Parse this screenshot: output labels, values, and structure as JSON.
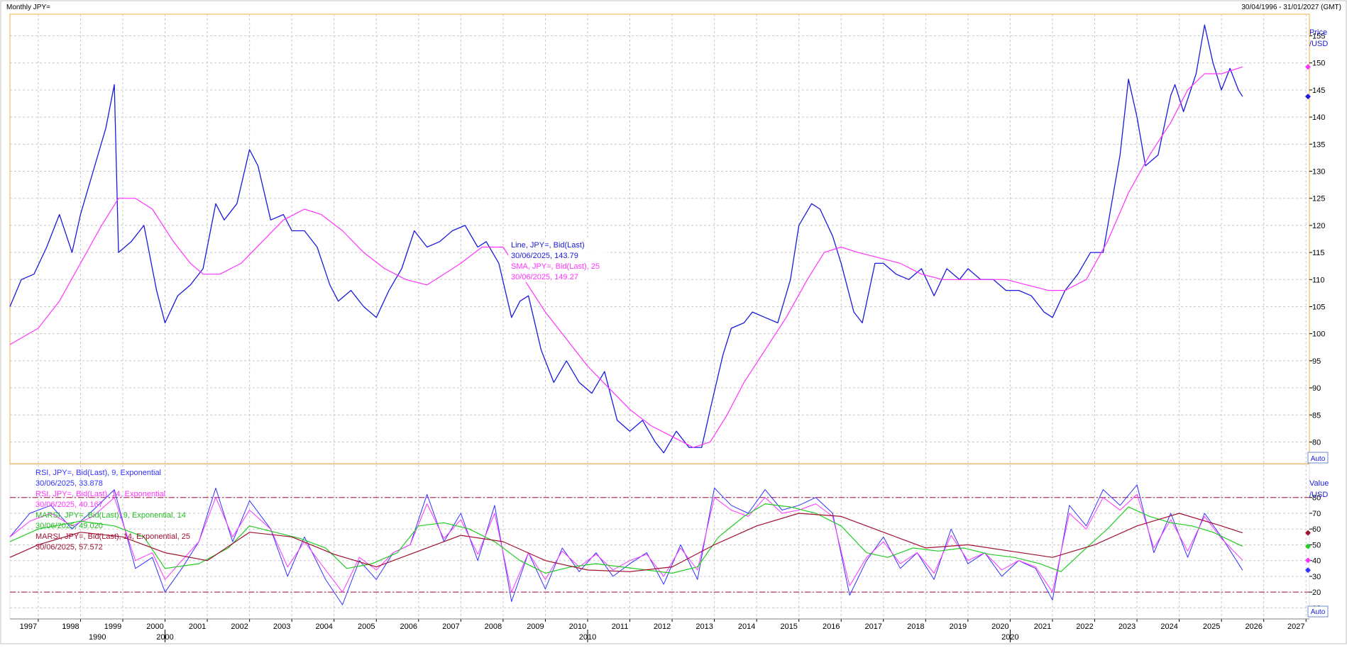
{
  "header": {
    "title": "Monthly JPY=",
    "range": "30/04/1996 - 31/01/2027 (GMT)"
  },
  "price_panel": {
    "axis_title_line1": "Price",
    "axis_title_line2": "/USD",
    "auto_label": "Auto",
    "legend": {
      "line_label": "Line, JPY=, Bid(Last)",
      "line_value": "30/06/2025, 143.79",
      "sma_label": "SMA, JPY=, Bid(Last),  25",
      "sma_value": "30/06/2025, 149.27"
    }
  },
  "rsi_panel": {
    "axis_title_line1": "Value",
    "axis_title_line2": "/USD",
    "auto_label": "Auto",
    "legend": {
      "rsi9_label": "RSI, JPY=, Bid(Last),  9, Exponential",
      "rsi9_value": "30/06/2025, 33.878",
      "rsi14_label": "RSI, JPY=, Bid(Last),  14, Exponential",
      "rsi14_value": "30/06/2025, 40.167",
      "marsi9_label": "MARSI, JPY=, Bid(Last),  9, Exponential, 14",
      "marsi9_value": "30/06/2025, 49.020",
      "marsi14_label": "MARSI, JPY=, Bid(Last),  14, Exponential, 25",
      "marsi14_value": "30/06/2025, 57.572"
    }
  },
  "colors": {
    "price_line": "#1a1adc",
    "sma": "#ff33ff",
    "rsi9": "#3333ff",
    "rsi14": "#ff33ff",
    "marsi9": "#22cc22",
    "marsi14": "#a01030",
    "grid": "#c8c8c8",
    "threshold": "#a01040",
    "border": "#f0b040"
  },
  "chart_data": [
    {
      "type": "line",
      "panel": "price",
      "ylim": [
        76,
        159
      ],
      "xlim": [
        1996.33,
        2027.08
      ],
      "y_ticks": [
        80,
        85,
        90,
        95,
        100,
        105,
        110,
        115,
        120,
        125,
        130,
        135,
        140,
        145,
        150,
        155
      ],
      "x_ticks_years": [
        "1997",
        "1998",
        "1999",
        "2000",
        "2001",
        "2002",
        "2003",
        "2004",
        "2005",
        "2006",
        "2007",
        "2008",
        "2009",
        "2010",
        "2011",
        "2012",
        "2013",
        "2014",
        "2015",
        "2016",
        "2017",
        "2018",
        "2019",
        "2020",
        "2021",
        "2022",
        "2023",
        "2024",
        "2025",
        "2026",
        "2027"
      ],
      "x_ticks_decades": [
        "1990",
        "2000",
        "2010",
        "2020"
      ],
      "grid": true,
      "series": [
        {
          "name": "Line, JPY=, Bid(Last)",
          "x": [
            1996.33,
            1996.6,
            1996.9,
            1997.2,
            1997.5,
            1997.8,
            1998.0,
            1998.3,
            1998.6,
            1998.8,
            1998.9,
            1999.2,
            1999.5,
            1999.8,
            2000.0,
            2000.3,
            2000.6,
            2000.9,
            2001.2,
            2001.4,
            2001.7,
            2002.0,
            2002.2,
            2002.5,
            2002.8,
            2003.0,
            2003.3,
            2003.6,
            2003.9,
            2004.1,
            2004.4,
            2004.7,
            2005.0,
            2005.3,
            2005.6,
            2005.9,
            2006.2,
            2006.5,
            2006.8,
            2007.1,
            2007.4,
            2007.6,
            2007.9,
            2008.2,
            2008.4,
            2008.6,
            2008.9,
            2009.2,
            2009.5,
            2009.8,
            2010.1,
            2010.4,
            2010.7,
            2011.0,
            2011.3,
            2011.6,
            2011.8,
            2012.1,
            2012.4,
            2012.7,
            2012.9,
            2013.2,
            2013.4,
            2013.7,
            2013.9,
            2014.2,
            2014.5,
            2014.8,
            2015.0,
            2015.3,
            2015.5,
            2015.8,
            2016.0,
            2016.3,
            2016.5,
            2016.8,
            2017.0,
            2017.3,
            2017.6,
            2017.9,
            2018.2,
            2018.5,
            2018.8,
            2019.0,
            2019.3,
            2019.6,
            2019.9,
            2020.2,
            2020.5,
            2020.8,
            2021.0,
            2021.3,
            2021.6,
            2021.9,
            2022.2,
            2022.4,
            2022.6,
            2022.8,
            2023.0,
            2023.2,
            2023.5,
            2023.8,
            2023.9,
            2024.1,
            2024.4,
            2024.6,
            2024.8,
            2025.0,
            2025.2,
            2025.4,
            2025.5
          ],
          "values": [
            105,
            110,
            111,
            116,
            122,
            115,
            122,
            130,
            138,
            146,
            115,
            117,
            120,
            108,
            102,
            107,
            109,
            112,
            124,
            121,
            124,
            134,
            131,
            121,
            122,
            119,
            119,
            116,
            109,
            106,
            108,
            105,
            103,
            108,
            112,
            119,
            116,
            117,
            119,
            120,
            116,
            117,
            113,
            103,
            106,
            107,
            97,
            91,
            95,
            91,
            89,
            93,
            84,
            82,
            84,
            80,
            78,
            82,
            79,
            79,
            86,
            96,
            101,
            102,
            104,
            103,
            102,
            110,
            120,
            124,
            123,
            118,
            113,
            104,
            102,
            113,
            113,
            111,
            110,
            112,
            107,
            112,
            110,
            112,
            110,
            110,
            108,
            108,
            107,
            104,
            103,
            108,
            111,
            115,
            115,
            124,
            133,
            147,
            140,
            131,
            133,
            144,
            146,
            141,
            148,
            157,
            150,
            145,
            149,
            145,
            143.79
          ]
        },
        {
          "name": "SMA, JPY=, Bid(Last),  25",
          "x": [
            1996.33,
            1997.0,
            1997.5,
            1998.0,
            1998.5,
            1998.9,
            1999.3,
            1999.7,
            2000.2,
            2000.6,
            2000.9,
            2001.3,
            2001.8,
            2002.3,
            2002.8,
            2003.3,
            2003.7,
            2004.2,
            2004.7,
            2005.2,
            2005.7,
            2006.2,
            2006.6,
            2007.0,
            2007.5,
            2008.0,
            2008.5,
            2009.0,
            2009.5,
            2010.0,
            2010.5,
            2011.0,
            2011.5,
            2012.0,
            2012.5,
            2012.9,
            2013.3,
            2013.7,
            2014.2,
            2014.7,
            2015.2,
            2015.6,
            2016.0,
            2016.4,
            2016.9,
            2017.4,
            2017.9,
            2018.4,
            2018.9,
            2019.4,
            2019.9,
            2020.4,
            2020.9,
            2021.3,
            2021.8,
            2022.3,
            2022.8,
            2023.3,
            2023.8,
            2024.2,
            2024.6,
            2025.0,
            2025.5
          ],
          "values": [
            98,
            101,
            106,
            113,
            120,
            125,
            125,
            123,
            117,
            113,
            111,
            111,
            113,
            117,
            121,
            123,
            122,
            119,
            115,
            112,
            110,
            109,
            111,
            113,
            116,
            116,
            110,
            104,
            99,
            94,
            90,
            86,
            83,
            81,
            79,
            80,
            85,
            91,
            97,
            103,
            110,
            115,
            116,
            115,
            114,
            113,
            111,
            110,
            110,
            110,
            110,
            109,
            108,
            108,
            110,
            117,
            126,
            133,
            139,
            145,
            148,
            148,
            149.27
          ]
        }
      ]
    },
    {
      "type": "line",
      "panel": "rsi",
      "ylim": [
        3,
        101
      ],
      "y_ticks": [
        10,
        20,
        30,
        40,
        50,
        60,
        70,
        80
      ],
      "thresholds": [
        20,
        80
      ],
      "grid": true,
      "series": [
        {
          "name": "RSI, JPY=, Bid(Last),  9, Exponential",
          "x": [
            1996.33,
            1996.8,
            1997.3,
            1997.8,
            1998.3,
            1998.8,
            1999.3,
            1999.7,
            2000.0,
            2000.4,
            2000.8,
            2001.2,
            2001.6,
            2002.0,
            2002.5,
            2002.9,
            2003.3,
            2003.8,
            2004.2,
            2004.6,
            2005.0,
            2005.4,
            2005.8,
            2006.2,
            2006.6,
            2007.0,
            2007.4,
            2007.8,
            2008.2,
            2008.6,
            2009.0,
            2009.4,
            2009.8,
            2010.2,
            2010.6,
            2011.0,
            2011.4,
            2011.8,
            2012.2,
            2012.6,
            2013.0,
            2013.4,
            2013.8,
            2014.2,
            2014.6,
            2015.0,
            2015.4,
            2015.8,
            2016.2,
            2016.6,
            2017.0,
            2017.4,
            2017.8,
            2018.2,
            2018.6,
            2019.0,
            2019.4,
            2019.8,
            2020.2,
            2020.6,
            2021.0,
            2021.4,
            2021.8,
            2022.2,
            2022.6,
            2023.0,
            2023.4,
            2023.8,
            2024.2,
            2024.6,
            2025.0,
            2025.5
          ],
          "values": [
            55,
            70,
            75,
            60,
            72,
            85,
            35,
            42,
            20,
            35,
            52,
            86,
            52,
            78,
            60,
            30,
            55,
            28,
            12,
            40,
            28,
            45,
            50,
            82,
            52,
            70,
            40,
            75,
            14,
            45,
            22,
            48,
            33,
            45,
            30,
            38,
            45,
            25,
            50,
            28,
            86,
            75,
            70,
            85,
            72,
            75,
            80,
            70,
            18,
            40,
            55,
            35,
            45,
            28,
            60,
            38,
            45,
            30,
            40,
            35,
            15,
            75,
            62,
            85,
            75,
            88,
            45,
            70,
            42,
            70,
            55,
            33.878
          ]
        },
        {
          "name": "RSI, JPY=, Bid(Last),  14, Exponential",
          "x": [
            1996.33,
            1996.8,
            1997.3,
            1997.8,
            1998.3,
            1998.8,
            1999.3,
            1999.7,
            2000.0,
            2000.4,
            2000.8,
            2001.2,
            2001.6,
            2002.0,
            2002.5,
            2002.9,
            2003.3,
            2003.8,
            2004.2,
            2004.6,
            2005.0,
            2005.4,
            2005.8,
            2006.2,
            2006.6,
            2007.0,
            2007.4,
            2007.8,
            2008.2,
            2008.6,
            2009.0,
            2009.4,
            2009.8,
            2010.2,
            2010.6,
            2011.0,
            2011.4,
            2011.8,
            2012.2,
            2012.6,
            2013.0,
            2013.4,
            2013.8,
            2014.2,
            2014.6,
            2015.0,
            2015.4,
            2015.8,
            2016.2,
            2016.6,
            2017.0,
            2017.4,
            2017.8,
            2018.2,
            2018.6,
            2019.0,
            2019.4,
            2019.8,
            2020.2,
            2020.6,
            2021.0,
            2021.4,
            2021.8,
            2022.2,
            2022.6,
            2023.0,
            2023.4,
            2023.8,
            2024.2,
            2024.6,
            2025.0,
            2025.5
          ],
          "values": [
            55,
            65,
            70,
            62,
            68,
            80,
            40,
            45,
            28,
            40,
            52,
            80,
            55,
            72,
            60,
            36,
            52,
            34,
            20,
            42,
            34,
            45,
            50,
            76,
            54,
            66,
            44,
            70,
            20,
            45,
            28,
            46,
            36,
            44,
            34,
            40,
            44,
            30,
            48,
            34,
            80,
            72,
            68,
            80,
            70,
            72,
            76,
            68,
            24,
            42,
            52,
            38,
            45,
            32,
            56,
            40,
            45,
            34,
            40,
            36,
            20,
            70,
            60,
            80,
            72,
            82,
            48,
            66,
            46,
            68,
            54,
            40.167
          ]
        },
        {
          "name": "MARSI, JPY=, Bid(Last),  9, Exponential, 14",
          "x": [
            1996.33,
            1997.0,
            1998.0,
            1998.8,
            1999.5,
            2000.0,
            2000.8,
            2001.5,
            2002.0,
            2002.6,
            2003.2,
            2003.8,
            2004.3,
            2004.9,
            2005.5,
            2006.0,
            2006.6,
            2007.2,
            2007.8,
            2008.4,
            2009.0,
            2009.6,
            2010.2,
            2010.8,
            2011.4,
            2012.0,
            2012.6,
            2013.1,
            2013.7,
            2014.2,
            2014.8,
            2015.4,
            2016.0,
            2016.6,
            2017.1,
            2017.7,
            2018.3,
            2018.9,
            2019.5,
            2020.1,
            2020.7,
            2021.2,
            2021.8,
            2022.3,
            2022.8,
            2023.3,
            2023.8,
            2024.3,
            2024.8,
            2025.5
          ],
          "values": [
            52,
            60,
            65,
            62,
            55,
            35,
            38,
            48,
            62,
            58,
            54,
            48,
            35,
            38,
            45,
            62,
            64,
            60,
            52,
            40,
            32,
            36,
            38,
            36,
            34,
            32,
            36,
            55,
            68,
            76,
            74,
            70,
            62,
            45,
            42,
            48,
            46,
            48,
            44,
            42,
            38,
            33,
            48,
            60,
            74,
            68,
            64,
            62,
            58,
            49.02
          ]
        },
        {
          "name": "MARSI, JPY=, Bid(Last),  14, Exponential, 25",
          "x": [
            1996.33,
            1997.0,
            1998.0,
            1999.0,
            2000.0,
            2001.0,
            2002.0,
            2003.0,
            2004.0,
            2005.0,
            2006.0,
            2007.0,
            2008.0,
            2009.0,
            2010.0,
            2011.0,
            2012.0,
            2013.0,
            2014.0,
            2015.0,
            2016.0,
            2017.0,
            2018.0,
            2019.0,
            2020.0,
            2021.0,
            2022.0,
            2023.0,
            2024.0,
            2025.0,
            2025.5
          ],
          "values": [
            42,
            50,
            58,
            55,
            45,
            40,
            58,
            55,
            44,
            36,
            46,
            56,
            52,
            40,
            34,
            33,
            36,
            50,
            62,
            70,
            68,
            58,
            48,
            50,
            46,
            42,
            50,
            62,
            70,
            62,
            57.572
          ]
        }
      ]
    }
  ]
}
